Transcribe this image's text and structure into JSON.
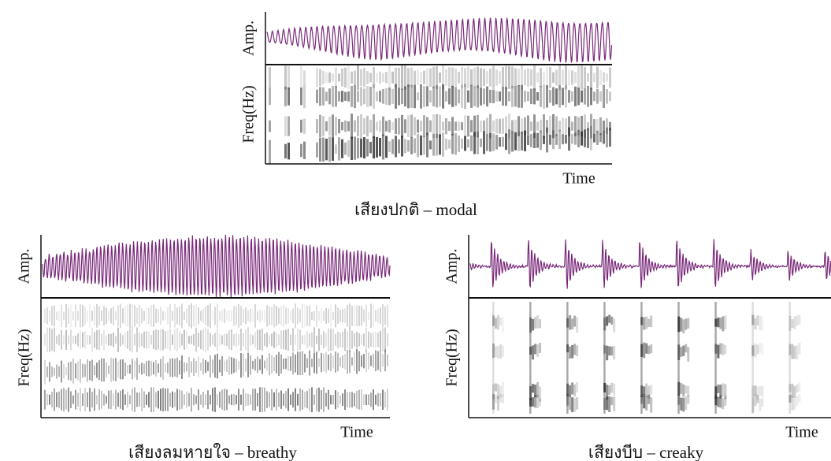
{
  "panels": [
    {
      "amp_label": "Amp.",
      "freq_label": "Freq(Hz)",
      "time_label": "Time",
      "caption": "เสียงปกติ – modal"
    },
    {
      "amp_label": "Amp.",
      "freq_label": "Freq(Hz)",
      "time_label": "Time",
      "caption": "เสียงลมหายใจ – breathy"
    },
    {
      "amp_label": "Amp.",
      "freq_label": "Freq(Hz)",
      "time_label": "Time",
      "caption": "เสียงบีบ – creaky"
    }
  ]
}
